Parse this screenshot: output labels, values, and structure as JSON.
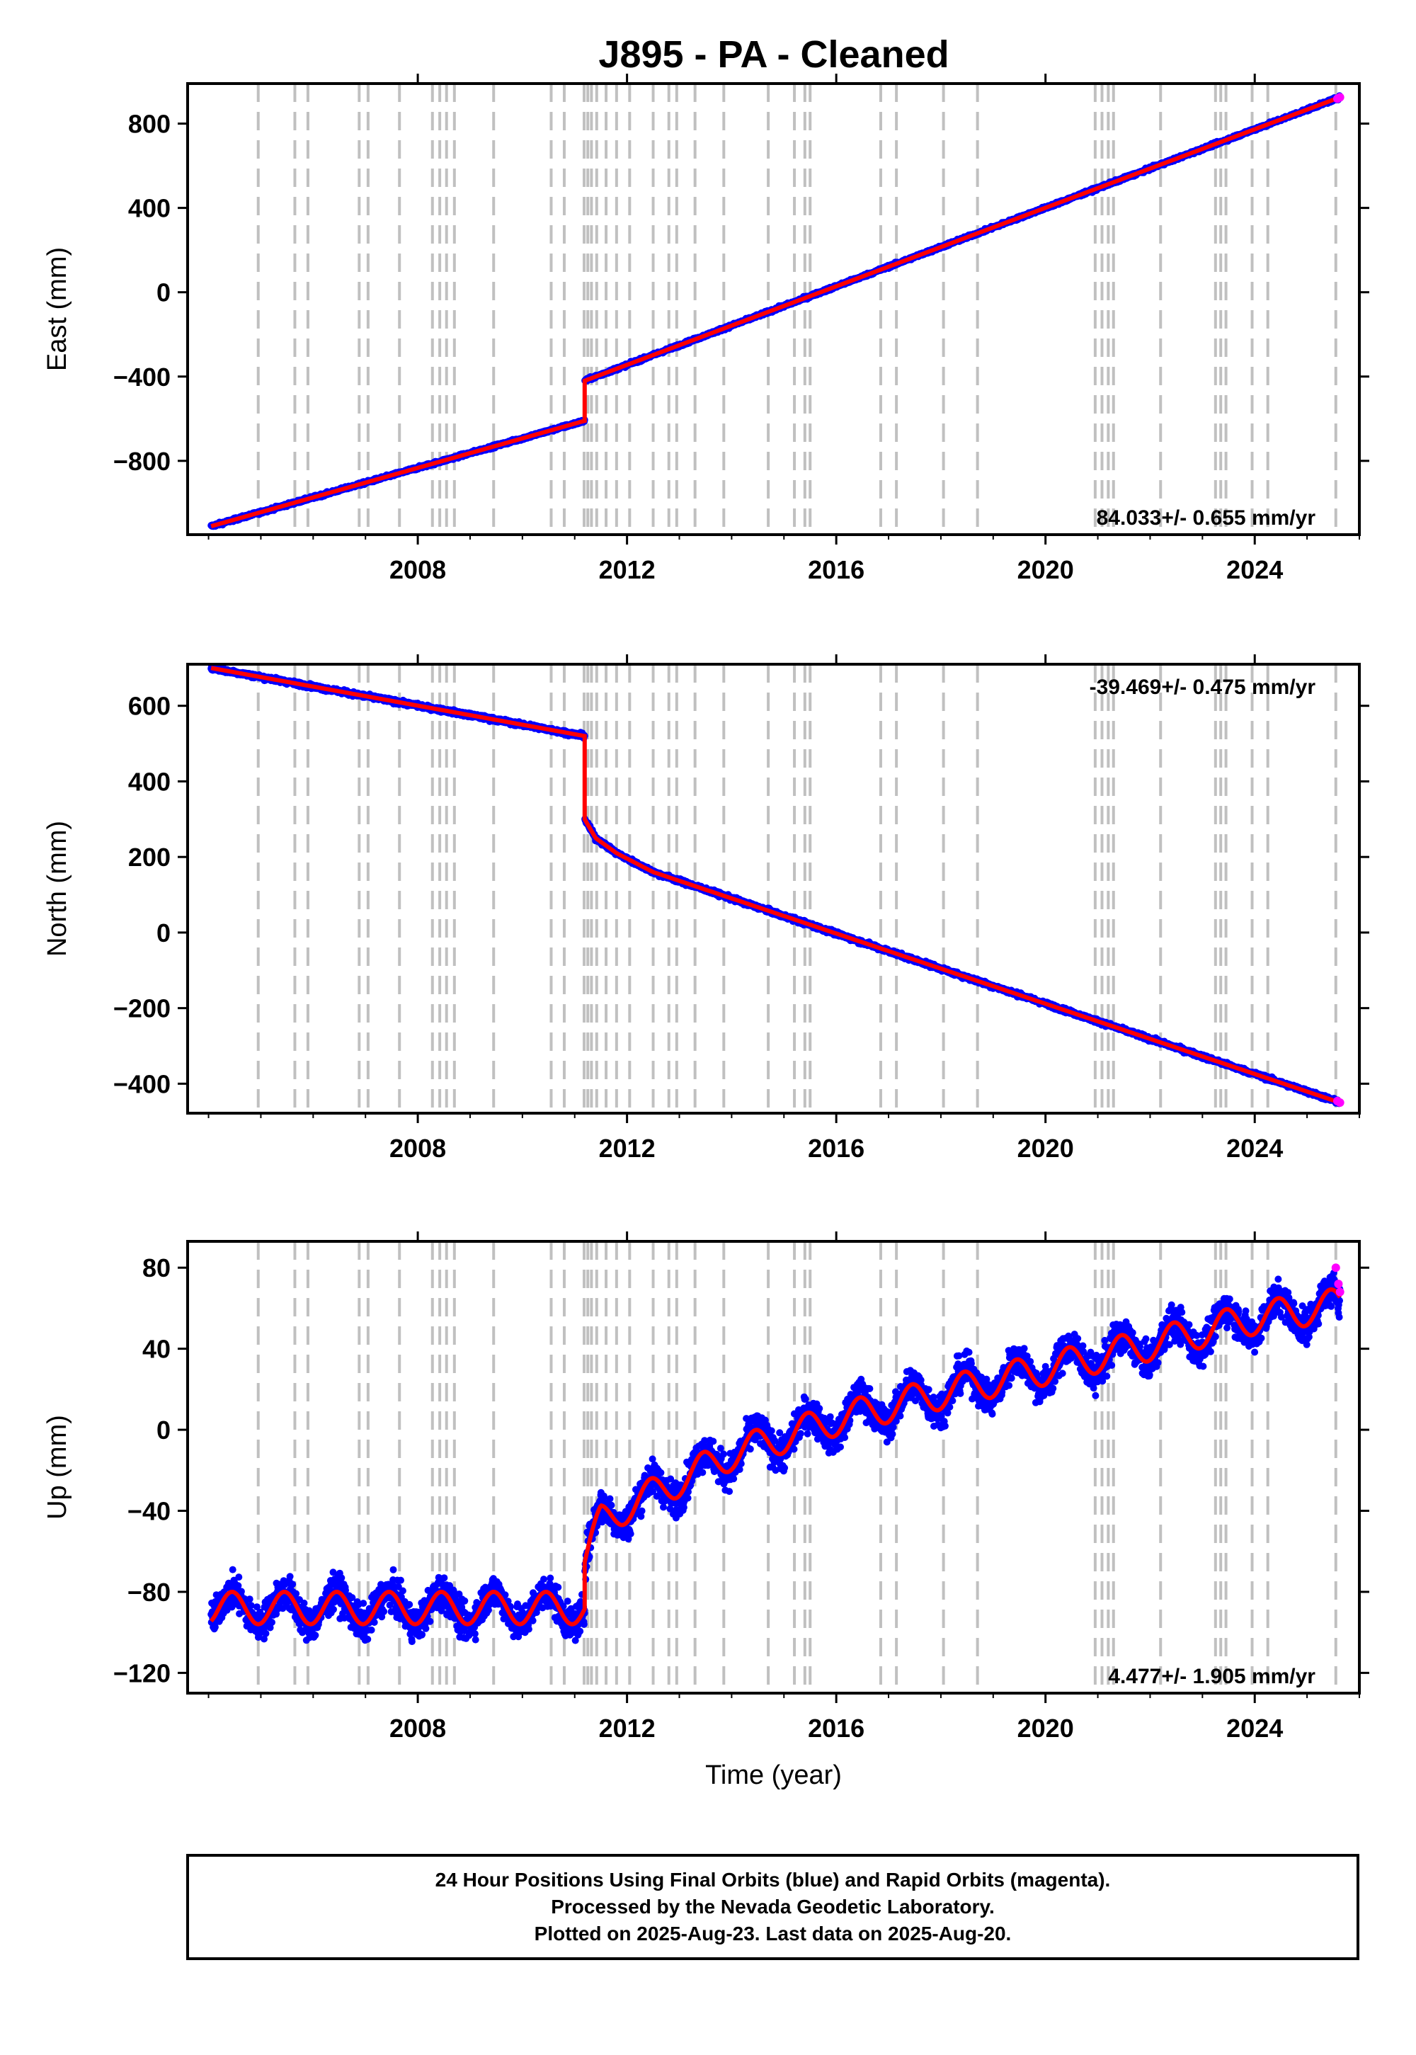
{
  "title": "J895  - PA - Cleaned",
  "footer": {
    "line1": "24 Hour Positions Using Final Orbits (blue) and Rapid Orbits (magenta).",
    "line2": "Processed by the Nevada Geodetic Laboratory.",
    "line3": "Plotted on 2025-Aug-23. Last data on 2025-Aug-20."
  },
  "colors": {
    "final_orbits": "#0000ff",
    "rapid_orbits": "#ff00ff",
    "model_fit": "#ff0000",
    "event_lines": "#c0c0c0",
    "frame": "#000000"
  },
  "chart_data": [
    {
      "type": "scatter",
      "name": "east",
      "ylabel": "East (mm)",
      "xlabel": "",
      "xlim": [
        2003.6,
        2026.0
      ],
      "ylim": [
        -1150,
        990
      ],
      "x_ticks": [
        2008,
        2012,
        2016,
        2020,
        2024
      ],
      "x_ticklabels": [
        "2008",
        "2012",
        "2016",
        "2020",
        "2024"
      ],
      "y_ticks": [
        800,
        400,
        0,
        -400,
        -800
      ],
      "y_ticklabels": [
        "800",
        "400",
        "0",
        "−400",
        "−800"
      ],
      "rate_label": "84.033+/- 0.655 mm/yr",
      "rate_position": "bottom-right",
      "data_range": [
        2004.05,
        2025.63
      ],
      "trend": {
        "segments": [
          {
            "x": [
              2004.05,
              2011.19
            ],
            "y": [
              -1110,
              -610
            ]
          },
          {
            "x": [
              2011.19,
              2025.63
            ],
            "y": [
              -420,
              925
            ]
          }
        ]
      },
      "noise_mm": 5,
      "seasonal_amplitude_mm": 0,
      "rapid_points": {
        "x": [
          2025.58,
          2025.63
        ],
        "y": [
          918,
          925
        ]
      },
      "grid": false
    },
    {
      "type": "scatter",
      "name": "north",
      "ylabel": "North (mm)",
      "xlabel": "",
      "xlim": [
        2003.6,
        2026.0
      ],
      "ylim": [
        -478,
        710
      ],
      "x_ticks": [
        2008,
        2012,
        2016,
        2020,
        2024
      ],
      "x_ticklabels": [
        "2008",
        "2012",
        "2016",
        "2020",
        "2024"
      ],
      "y_ticks": [
        600,
        400,
        200,
        0,
        -200,
        -400
      ],
      "y_ticklabels": [
        "600",
        "400",
        "200",
        "0",
        "−200",
        "−400"
      ],
      "rate_label": "-39.469+/- 0.475 mm/yr",
      "rate_position": "top-right",
      "data_range": [
        2004.05,
        2025.63
      ],
      "trend": {
        "segments": [
          {
            "x": [
              2004.05,
              2011.19
            ],
            "y": [
              700,
              520
            ]
          },
          {
            "x": [
              2011.19,
              2011.4,
              2011.8,
              2012.5,
              2025.63
            ],
            "y": [
              300,
              250,
              210,
              160,
              -450
            ]
          }
        ]
      },
      "noise_mm": 4,
      "seasonal_amplitude_mm": 0,
      "rapid_points": {
        "x": [
          2025.58,
          2025.63
        ],
        "y": [
          -446,
          -450
        ]
      },
      "grid": false
    },
    {
      "type": "scatter",
      "name": "up",
      "ylabel": "Up (mm)",
      "xlabel": "Time (year)",
      "xlim": [
        2003.6,
        2026.0
      ],
      "ylim": [
        -130,
        93
      ],
      "x_ticks": [
        2008,
        2012,
        2016,
        2020,
        2024
      ],
      "x_ticklabels": [
        "2008",
        "2012",
        "2016",
        "2020",
        "2024"
      ],
      "y_ticks": [
        80,
        40,
        0,
        -40,
        -80,
        -120
      ],
      "y_ticklabels": [
        "80",
        "40",
        "0",
        "−40",
        "−80",
        "−120"
      ],
      "rate_label": "4.477+/- 1.905 mm/yr",
      "rate_position": "bottom-right",
      "data_range": [
        2004.05,
        2025.63
      ],
      "trend": {
        "segments": [
          {
            "x": [
              2004.05,
              2011.19
            ],
            "y": [
              -88,
              -88
            ]
          },
          {
            "x": [
              2011.19,
              2011.5,
              2012.0,
              2013.0,
              2014.0,
              2016.0,
              2018.0,
              2020.0,
              2022.0,
              2024.0,
              2025.63
            ],
            "y": [
              -65,
              -45,
              -38,
              -25,
              -12,
              5,
              18,
              30,
              42,
              55,
              62
            ]
          }
        ]
      },
      "noise_mm": 6,
      "seasonal_amplitude_mm": 8,
      "rapid_points": {
        "x": [
          2025.55,
          2025.6,
          2025.63
        ],
        "y": [
          80,
          72,
          68
        ]
      },
      "grid": false
    }
  ],
  "event_lines_x": [
    2004.95,
    2005.65,
    2005.9,
    2006.88,
    2007.05,
    2007.65,
    2008.28,
    2008.42,
    2008.55,
    2008.7,
    2009.45,
    2010.55,
    2010.8,
    2011.18,
    2011.25,
    2011.32,
    2011.42,
    2011.6,
    2011.8,
    2012.05,
    2012.5,
    2012.8,
    2012.95,
    2013.3,
    2013.85,
    2014.7,
    2015.2,
    2015.4,
    2015.5,
    2016.85,
    2017.15,
    2018.05,
    2018.7,
    2020.95,
    2021.08,
    2021.2,
    2021.3,
    2022.2,
    2023.25,
    2023.35,
    2023.45,
    2023.95,
    2024.25,
    2025.55
  ]
}
